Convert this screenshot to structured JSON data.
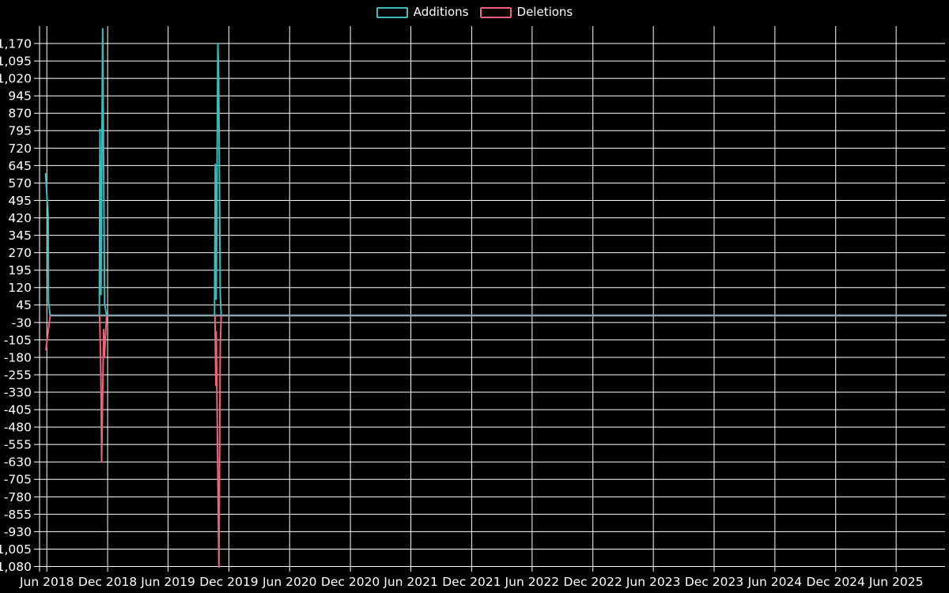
{
  "legend": {
    "items": [
      {
        "label": "Additions",
        "color": "#3cbcbc"
      },
      {
        "label": "Deletions",
        "color": "#f2607f"
      }
    ]
  },
  "chart_data": {
    "type": "line",
    "title": "",
    "xlabel": "",
    "ylabel": "",
    "background": "#000000",
    "grid": true,
    "grid_color": "#ffffff",
    "text_color": "#ffffff",
    "legend_position": "top-center",
    "x_axis": {
      "min": "2018-05-10",
      "max": "2025-10-31",
      "ticks": [
        {
          "label": "Jun 2018",
          "date": "2018-06-01"
        },
        {
          "label": "Dec 2018",
          "date": "2018-12-01"
        },
        {
          "label": "Jun 2019",
          "date": "2019-06-01"
        },
        {
          "label": "Dec 2019",
          "date": "2019-12-01"
        },
        {
          "label": "Jun 2020",
          "date": "2020-06-01"
        },
        {
          "label": "Dec 2020",
          "date": "2020-12-01"
        },
        {
          "label": "Jun 2021",
          "date": "2021-06-01"
        },
        {
          "label": "Dec 2021",
          "date": "2021-12-01"
        },
        {
          "label": "Jun 2022",
          "date": "2022-06-01"
        },
        {
          "label": "Dec 2022",
          "date": "2022-12-01"
        },
        {
          "label": "Jun 2023",
          "date": "2023-06-01"
        },
        {
          "label": "Dec 2023",
          "date": "2023-12-01"
        },
        {
          "label": "Jun 2024",
          "date": "2024-06-01"
        },
        {
          "label": "Dec 2024",
          "date": "2024-12-01"
        },
        {
          "label": "Jun 2025",
          "date": "2025-06-01"
        }
      ]
    },
    "y_axis": {
      "min": -1102,
      "max": 1245,
      "ticks": [
        {
          "label": "1,170",
          "value": 1170
        },
        {
          "label": "1,095",
          "value": 1095
        },
        {
          "label": "1,020",
          "value": 1020
        },
        {
          "label": "945",
          "value": 945
        },
        {
          "label": "870",
          "value": 870
        },
        {
          "label": "795",
          "value": 795
        },
        {
          "label": "720",
          "value": 720
        },
        {
          "label": "645",
          "value": 645
        },
        {
          "label": "570",
          "value": 570
        },
        {
          "label": "495",
          "value": 495
        },
        {
          "label": "420",
          "value": 420
        },
        {
          "label": "345",
          "value": 345
        },
        {
          "label": "270",
          "value": 270
        },
        {
          "label": "195",
          "value": 195
        },
        {
          "label": "120",
          "value": 120
        },
        {
          "label": "45",
          "value": 45
        },
        {
          "label": "-30",
          "value": -30
        },
        {
          "label": "-105",
          "value": -105
        },
        {
          "label": "-180",
          "value": -180
        },
        {
          "label": "-255",
          "value": -255
        },
        {
          "label": "-330",
          "value": -330
        },
        {
          "label": "-405",
          "value": -405
        },
        {
          "label": "-480",
          "value": -480
        },
        {
          "label": "-555",
          "value": -555
        },
        {
          "label": "-630",
          "value": -630
        },
        {
          "label": "-705",
          "value": -705
        },
        {
          "label": "-780",
          "value": -780
        },
        {
          "label": "-855",
          "value": -855
        },
        {
          "label": "-930",
          "value": -930
        },
        {
          "label": "-1,005",
          "value": -1005
        },
        {
          "label": "-1,080",
          "value": -1080
        }
      ]
    },
    "zero_line": {
      "color": "#8ca5ac",
      "value": 0,
      "from": "2018-06-11",
      "to": "2025-10-31"
    },
    "series": [
      {
        "name": "Additions",
        "color": "#3cbcbc",
        "segments": [
          [
            [
              "2018-05-28",
              612
            ],
            [
              "2018-06-05",
              430
            ],
            [
              "2018-06-06",
              60
            ],
            [
              "2018-06-11",
              0
            ]
          ],
          [
            [
              "2018-11-06",
              0
            ],
            [
              "2018-11-08",
              800
            ],
            [
              "2018-11-11",
              90
            ],
            [
              "2018-11-16",
              1234
            ],
            [
              "2018-11-22",
              50
            ],
            [
              "2018-11-28",
              0
            ]
          ],
          [
            [
              "2019-10-19",
              0
            ],
            [
              "2019-10-21",
              650
            ],
            [
              "2019-10-24",
              70
            ],
            [
              "2019-10-29",
              1170
            ],
            [
              "2019-10-31",
              1035
            ],
            [
              "2019-11-01",
              900
            ],
            [
              "2019-11-05",
              95
            ],
            [
              "2019-11-08",
              0
            ]
          ]
        ]
      },
      {
        "name": "Deletions",
        "color": "#f2607f",
        "segments": [
          [
            [
              "2018-05-29",
              -150
            ],
            [
              "2018-06-11",
              0
            ]
          ],
          [
            [
              "2018-11-07",
              0
            ],
            [
              "2018-11-10",
              -200
            ],
            [
              "2018-11-12",
              -420
            ],
            [
              "2018-11-13",
              -630
            ],
            [
              "2018-11-19",
              -60
            ],
            [
              "2018-11-21",
              -180
            ],
            [
              "2018-11-28",
              0
            ]
          ],
          [
            [
              "2019-10-20",
              0
            ],
            [
              "2019-10-23",
              -300
            ],
            [
              "2019-10-24",
              -70
            ],
            [
              "2019-11-01",
              -1082
            ],
            [
              "2019-11-05",
              -130
            ],
            [
              "2019-11-08",
              0
            ]
          ]
        ]
      }
    ]
  }
}
